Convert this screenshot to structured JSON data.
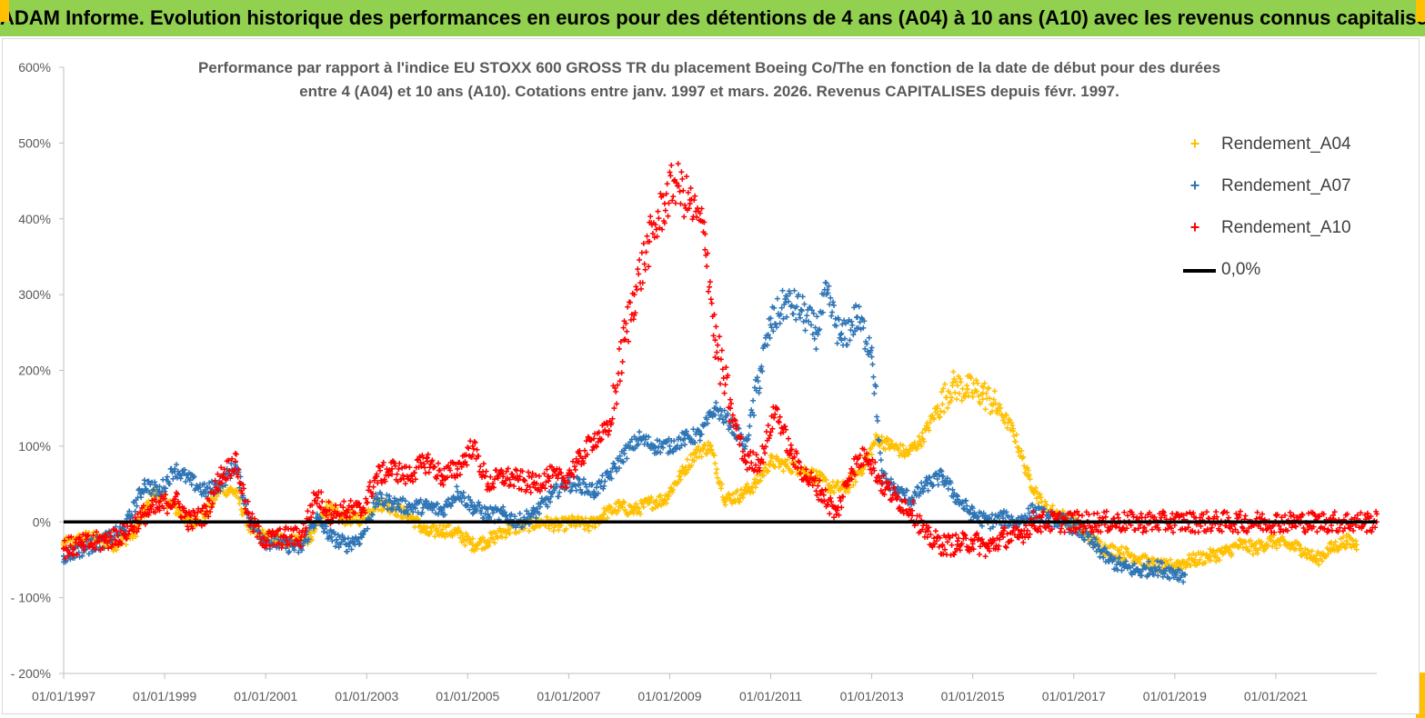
{
  "banner": {
    "text": "ADAM Informe. Evolution historique des performances en euros pour des détentions de 4 ans (A04) à 10 ans (A10) avec les revenus connus capitalisés"
  },
  "colors": {
    "banner": "#92d050",
    "corner": "#ffc000",
    "a04": "#ffc000",
    "a07": "#2e75b6",
    "a10": "#ff0000",
    "zero": "#000000",
    "axis": "#bfbfbf",
    "text": "#595959"
  },
  "chart_data": {
    "type": "scatter",
    "title": [
      "Performance par rapport à l'indice EU STOXX 600 GROSS TR  du placement Boeing Co/The en fonction de la date de début pour des durées",
      "entre 4 (A04) et 10 ans (A10). Cotations entre janv. 1997 et mars. 2026. Revenus CAPITALISES depuis févr. 1997."
    ],
    "xlabel": "",
    "ylabel": "",
    "xlim": [
      1997.0,
      2023.0
    ],
    "ylim": [
      -200,
      600
    ],
    "y_ticks": [
      -200,
      -100,
      0,
      100,
      200,
      300,
      400,
      500,
      600
    ],
    "y_tick_labels": [
      "- 200%",
      "- 100%",
      "0%",
      "100%",
      "200%",
      "300%",
      "400%",
      "500%",
      "600%"
    ],
    "x_ticks": [
      1997,
      1999,
      2001,
      2003,
      2005,
      2007,
      2009,
      2011,
      2013,
      2015,
      2017,
      2019,
      2021
    ],
    "x_tick_labels": [
      "01/01/1997",
      "01/01/1999",
      "01/01/2001",
      "01/01/2003",
      "01/01/2005",
      "01/01/2007",
      "01/01/2009",
      "01/01/2011",
      "01/01/2013",
      "01/01/2015",
      "01/01/2017",
      "01/01/2019",
      "01/01/2021"
    ],
    "legend_position": "top-right",
    "series": [
      {
        "name": "Rendement_A04",
        "marker": "+",
        "x": [
          1997.0,
          1997.5,
          1998.0,
          1998.4,
          1998.8,
          1999.1,
          1999.5,
          1999.8,
          2000.1,
          2000.4,
          2000.7,
          2001.0,
          2001.5,
          2001.9,
          2002.2,
          2002.5,
          2002.9,
          2003.2,
          2003.5,
          2003.9,
          2004.2,
          2004.5,
          2004.8,
          2005.1,
          2005.4,
          2005.8,
          2006.1,
          2006.5,
          2006.8,
          2007.1,
          2007.4,
          2007.7,
          2008.0,
          2008.3,
          2008.6,
          2008.9,
          2009.2,
          2009.5,
          2009.8,
          2010.1,
          2010.4,
          2010.7,
          2011.0,
          2011.3,
          2011.6,
          2011.9,
          2012.2,
          2012.5,
          2012.8,
          2013.1,
          2013.4,
          2013.7,
          2014.0,
          2014.3,
          2014.6,
          2014.9,
          2015.2,
          2015.5,
          2015.8,
          2016.1,
          2016.4,
          2016.7,
          2017.0,
          2017.3,
          2017.6,
          2017.9,
          2018.2,
          2018.5,
          2018.8,
          2019.1,
          2019.4,
          2019.7,
          2020.0,
          2020.3,
          2020.6,
          2020.9,
          2021.2,
          2021.5,
          2021.8,
          2022.1,
          2022.4,
          2022.6
        ],
        "y": [
          -30,
          -20,
          -30,
          -15,
          40,
          25,
          0,
          10,
          45,
          40,
          -10,
          -20,
          -25,
          -20,
          20,
          5,
          5,
          25,
          20,
          5,
          -15,
          -10,
          -15,
          -30,
          -25,
          -10,
          -5,
          0,
          -5,
          0,
          -5,
          10,
          20,
          15,
          25,
          30,
          60,
          90,
          100,
          30,
          35,
          50,
          80,
          75,
          70,
          60,
          45,
          45,
          70,
          110,
          100,
          90,
          110,
          150,
          180,
          175,
          170,
          150,
          120,
          60,
          20,
          10,
          0,
          -20,
          -35,
          -40,
          -45,
          -55,
          -60,
          -55,
          -50,
          -45,
          -40,
          -30,
          -35,
          -25,
          -30,
          -35,
          -50,
          -35,
          -25,
          -30
        ]
      },
      {
        "name": "Rendement_A07",
        "marker": "+",
        "x": [
          1997.0,
          1997.4,
          1997.8,
          1998.2,
          1998.6,
          1998.9,
          1999.2,
          1999.5,
          1999.8,
          2000.1,
          2000.4,
          2000.7,
          2001.0,
          2001.4,
          2001.7,
          2002.0,
          2002.3,
          2002.6,
          2002.9,
          2003.2,
          2003.5,
          2003.8,
          2004.2,
          2004.5,
          2004.8,
          2005.1,
          2005.4,
          2005.7,
          2006.0,
          2006.3,
          2006.6,
          2006.9,
          2007.2,
          2007.5,
          2007.8,
          2008.1,
          2008.4,
          2008.7,
          2009.0,
          2009.3,
          2009.6,
          2009.9,
          2010.2,
          2010.5,
          2010.8,
          2011.0,
          2011.3,
          2011.6,
          2011.9,
          2012.1,
          2012.4,
          2012.7,
          2013.0,
          2013.2,
          2013.5,
          2013.8,
          2014.1,
          2014.4,
          2014.7,
          2015.0,
          2015.3,
          2015.6,
          2015.9,
          2016.2,
          2016.5,
          2016.8,
          2017.1,
          2017.4,
          2017.7,
          2018.0,
          2018.3,
          2018.6,
          2018.9,
          2019.2
        ],
        "y": [
          -45,
          -35,
          -25,
          -10,
          50,
          40,
          70,
          55,
          40,
          50,
          75,
          0,
          -25,
          -30,
          -35,
          5,
          -20,
          -30,
          -20,
          30,
          25,
          20,
          20,
          15,
          40,
          20,
          10,
          10,
          0,
          10,
          30,
          50,
          50,
          40,
          60,
          90,
          110,
          100,
          100,
          110,
          115,
          150,
          130,
          100,
          200,
          260,
          290,
          280,
          250,
          300,
          240,
          270,
          230,
          60,
          40,
          30,
          50,
          60,
          30,
          10,
          0,
          5,
          0,
          15,
          5,
          0,
          -10,
          -30,
          -50,
          -60,
          -65,
          -60,
          -65,
          -70
        ]
      },
      {
        "name": "Rendement_A10",
        "marker": "+",
        "x": [
          1997.0,
          1997.4,
          1997.8,
          1998.2,
          1998.6,
          1998.9,
          1999.2,
          1999.5,
          1999.8,
          2000.1,
          2000.4,
          2000.7,
          2001.0,
          2001.4,
          2001.7,
          2002.0,
          2002.3,
          2002.6,
          2002.9,
          2003.2,
          2003.5,
          2003.8,
          2004.2,
          2004.5,
          2004.8,
          2005.1,
          2005.4,
          2005.7,
          2006.0,
          2006.3,
          2006.6,
          2006.9,
          2007.2,
          2007.5,
          2007.8,
          2008.1,
          2008.3,
          2008.6,
          2008.9,
          2009.1,
          2009.4,
          2009.7,
          2009.9,
          2010.2,
          2010.5,
          2010.8,
          2011.1,
          2011.4,
          2011.7,
          2012.0,
          2012.3,
          2012.6,
          2012.9,
          2013.2,
          2013.5,
          2013.8,
          2014.1,
          2014.4,
          2014.7,
          2015.0,
          2015.3,
          2015.6,
          2015.9,
          2016.2,
          2016.5,
          2017.0,
          2017.5,
          2018.0,
          2018.5,
          2019.0,
          2019.5,
          2020.0,
          2020.5,
          2021.0,
          2021.5,
          2022.0,
          2022.5,
          2023.0
        ],
        "y": [
          -35,
          -30,
          -25,
          -15,
          10,
          20,
          30,
          0,
          10,
          60,
          80,
          0,
          -25,
          -20,
          -20,
          35,
          10,
          15,
          15,
          60,
          70,
          60,
          80,
          60,
          70,
          100,
          50,
          60,
          55,
          50,
          60,
          55,
          80,
          110,
          120,
          240,
          300,
          370,
          420,
          450,
          420,
          380,
          240,
          150,
          80,
          80,
          150,
          90,
          60,
          40,
          10,
          70,
          90,
          50,
          30,
          15,
          -20,
          -30,
          -30,
          -25,
          -35,
          -20,
          -20,
          0,
          0,
          0,
          0,
          0,
          0,
          0,
          0,
          0,
          0,
          0,
          0,
          0,
          0,
          0
        ]
      },
      {
        "name": "0,0%",
        "type": "line",
        "x": [
          1997.0,
          2023.0
        ],
        "y": [
          0,
          0
        ]
      }
    ]
  }
}
